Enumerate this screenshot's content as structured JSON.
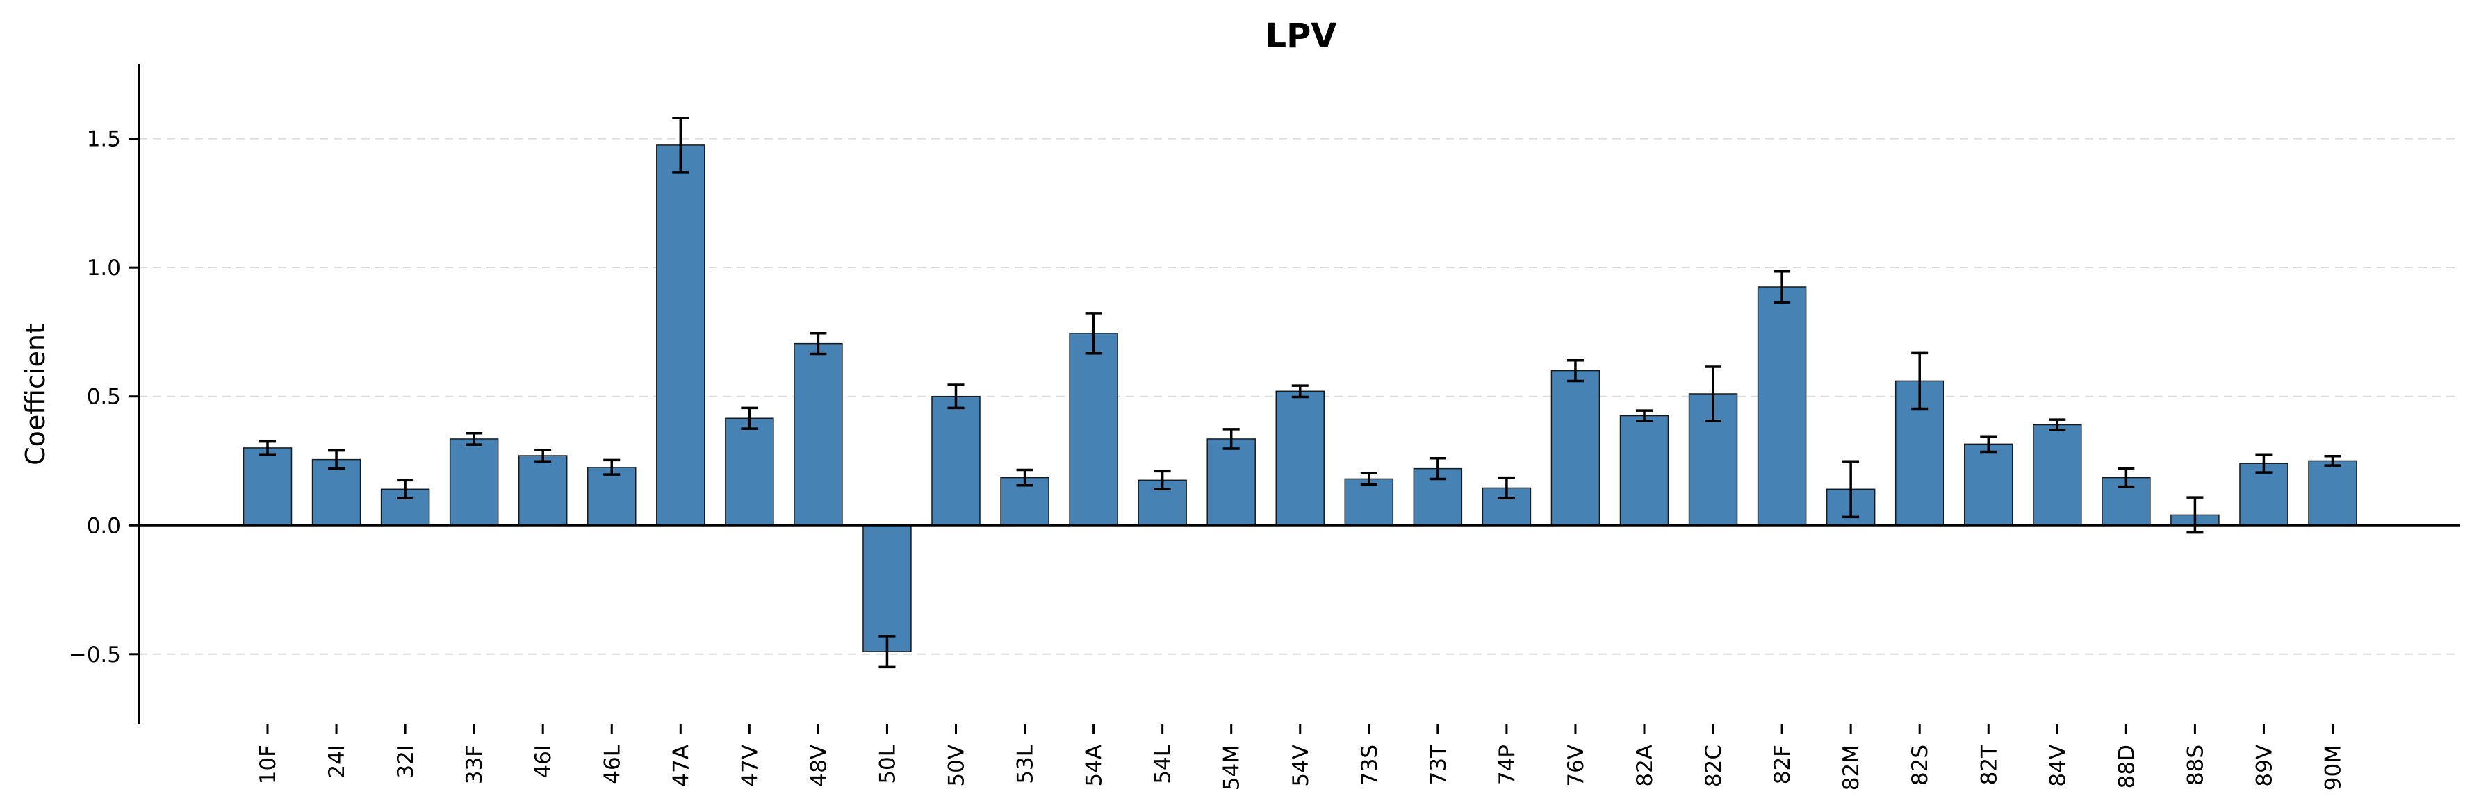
{
  "chart_data": {
    "type": "bar",
    "title": "LPV",
    "xlabel": "",
    "ylabel": "Coefficient",
    "ylim": [
      -0.77,
      1.79
    ],
    "yticks": [
      -0.5,
      0.0,
      0.5,
      1.0,
      1.5
    ],
    "ytick_labels": [
      "−0.5",
      "0.0",
      "0.5",
      "1.0",
      "1.5"
    ],
    "grid": "horizontal dashed",
    "bar_color": "#4682b4",
    "categories": [
      "10F",
      "24I",
      "32I",
      "33F",
      "46I",
      "46L",
      "47A",
      "47V",
      "48V",
      "50L",
      "50V",
      "53L",
      "54A",
      "54L",
      "54M",
      "54V",
      "73S",
      "73T",
      "74P",
      "76V",
      "82A",
      "82C",
      "82F",
      "82M",
      "82S",
      "82T",
      "84V",
      "88D",
      "88S",
      "89V",
      "90M"
    ],
    "values": [
      0.3,
      0.255,
      0.14,
      0.335,
      0.27,
      0.225,
      1.475,
      0.415,
      0.705,
      -0.49,
      0.5,
      0.185,
      0.745,
      0.175,
      0.335,
      0.52,
      0.18,
      0.22,
      0.145,
      0.6,
      0.425,
      0.51,
      0.925,
      0.14,
      0.56,
      0.315,
      0.39,
      0.185,
      0.04,
      0.24,
      0.25
    ],
    "errors": [
      0.025,
      0.035,
      0.035,
      0.022,
      0.022,
      0.028,
      0.105,
      0.04,
      0.04,
      0.06,
      0.045,
      0.03,
      0.078,
      0.035,
      0.038,
      0.022,
      0.022,
      0.04,
      0.04,
      0.04,
      0.02,
      0.105,
      0.06,
      0.108,
      0.108,
      0.03,
      0.02,
      0.035,
      0.068,
      0.035,
      0.018
    ]
  }
}
